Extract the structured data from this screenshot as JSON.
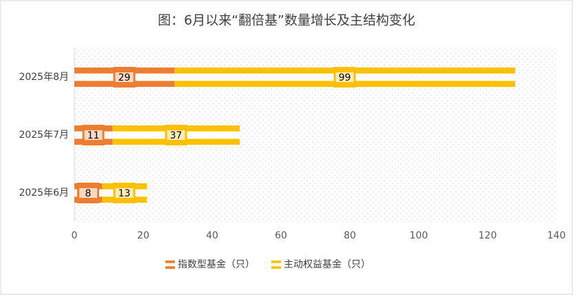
{
  "chart_data": {
    "type": "bar",
    "orientation": "horizontal",
    "stacked": true,
    "title": "图：6月以来“翻倍基”数量增长及主结构变化",
    "categories": [
      "2025年8月",
      "2025年7月",
      "2025年6月"
    ],
    "series": [
      {
        "name": "指数型基金（只）",
        "color": "#ED7D31",
        "values": [
          29,
          11,
          8
        ]
      },
      {
        "name": "主动权益基金（只）",
        "color": "#FFC000",
        "values": [
          99,
          37,
          13
        ]
      }
    ],
    "xlim": [
      0,
      140
    ],
    "xticks": [
      0,
      20,
      40,
      60,
      80,
      100,
      120,
      140
    ],
    "legend": "bottom"
  }
}
